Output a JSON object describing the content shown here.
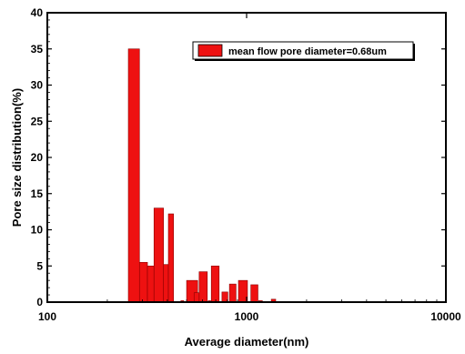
{
  "chart_data": {
    "type": "bar",
    "xlabel": "Average diameter(nm)",
    "ylabel": "Pore size distribution(%)",
    "x_scale": "log",
    "xlim": [
      100,
      10000
    ],
    "ylim": [
      0,
      40
    ],
    "x_ticks": [
      100,
      1000,
      10000
    ],
    "x_tick_labels": [
      "100",
      "1000",
      "10000"
    ],
    "y_ticks": [
      0,
      5,
      10,
      15,
      20,
      25,
      30,
      35,
      40
    ],
    "y_tick_labels": [
      "0",
      "5",
      "10",
      "15",
      "20",
      "25",
      "30",
      "35",
      "40"
    ],
    "grid": false,
    "legend_position": "top-right",
    "bar_color": "#ee1111",
    "series": [
      {
        "name": "mean flow pore diameter=0.68um",
        "bars": [
          {
            "x0": 255,
            "x1": 290,
            "value": 35.0
          },
          {
            "x0": 290,
            "x1": 318,
            "value": 5.5
          },
          {
            "x0": 318,
            "x1": 343,
            "value": 5.0
          },
          {
            "x0": 343,
            "x1": 383,
            "value": 13.0
          },
          {
            "x0": 383,
            "x1": 405,
            "value": 5.2
          },
          {
            "x0": 405,
            "x1": 430,
            "value": 12.2
          },
          {
            "x0": 468,
            "x1": 484,
            "value": 0.2
          },
          {
            "x0": 500,
            "x1": 568,
            "value": 3.0
          },
          {
            "x0": 545,
            "x1": 580,
            "value": 1.3
          },
          {
            "x0": 578,
            "x1": 635,
            "value": 4.2
          },
          {
            "x0": 642,
            "x1": 660,
            "value": 0.2
          },
          {
            "x0": 665,
            "x1": 728,
            "value": 5.0
          },
          {
            "x0": 752,
            "x1": 805,
            "value": 1.4
          },
          {
            "x0": 820,
            "x1": 885,
            "value": 2.5
          },
          {
            "x0": 910,
            "x1": 1010,
            "value": 3.0
          },
          {
            "x0": 1050,
            "x1": 1140,
            "value": 2.4
          },
          {
            "x0": 1150,
            "x1": 1200,
            "value": 0.2
          },
          {
            "x0": 1330,
            "x1": 1400,
            "value": 0.4
          }
        ]
      }
    ]
  }
}
